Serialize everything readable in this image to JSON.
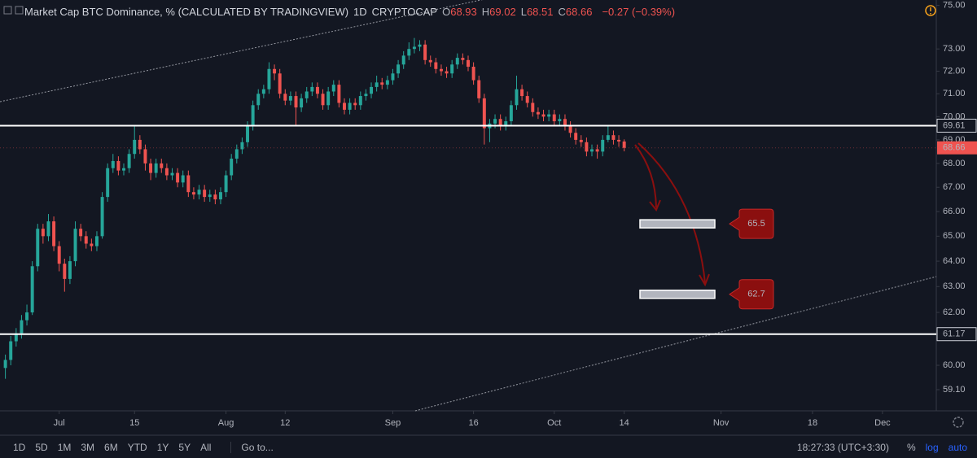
{
  "header": {
    "symbol": "Market Cap BTC Dominance, % (CALCULATED BY TRADINGVIEW)",
    "interval": "1D",
    "exchange": "CRYPTOCAP",
    "ohlc": [
      {
        "label": "O",
        "value": "68.93"
      },
      {
        "label": "H",
        "value": "69.02"
      },
      {
        "label": "L",
        "value": "68.51"
      },
      {
        "label": "C",
        "value": "68.66"
      }
    ],
    "change": "−0.27 (−0.39%)"
  },
  "toolbar": {
    "ranges": [
      "1D",
      "5D",
      "1M",
      "3M",
      "6M",
      "YTD",
      "1Y",
      "5Y",
      "All"
    ],
    "goto": "Go to...",
    "clock": "18:27:33 (UTC+3:30)",
    "modes": [
      "%",
      "log",
      "auto"
    ]
  },
  "chart_data": {
    "type": "candlestick",
    "log_scale": true,
    "grid": false,
    "up_color": "#26a69a",
    "down_color": "#ef5350",
    "ylim": [
      58.33,
      75.25
    ],
    "yticks": [
      {
        "value": 75,
        "label": "75.00"
      },
      {
        "value": 73,
        "label": "73.00"
      },
      {
        "value": 72,
        "label": "72.00"
      },
      {
        "value": 71,
        "label": "71.00"
      },
      {
        "value": 70,
        "label": "70.00"
      },
      {
        "value": 69,
        "label": "69.00"
      },
      {
        "value": 68,
        "label": "68.00"
      },
      {
        "value": 67,
        "label": "67.00"
      },
      {
        "value": 66,
        "label": "66.00"
      },
      {
        "value": 65,
        "label": "65.00"
      },
      {
        "value": 64,
        "label": "64.00"
      },
      {
        "value": 63,
        "label": "63.00"
      },
      {
        "value": 62,
        "label": "62.00"
      },
      {
        "value": 60,
        "label": "60.00"
      },
      {
        "value": 59.1,
        "label": "59.10"
      }
    ],
    "xlim": [
      "Jun 20",
      "Dec 11"
    ],
    "xticks": [
      {
        "value": "Jul 1",
        "label": "Jul"
      },
      {
        "value": "Jul 15",
        "label": "15"
      },
      {
        "value": "Aug 1",
        "label": "Aug"
      },
      {
        "value": "Aug 12",
        "label": "12"
      },
      {
        "value": "Sep 1",
        "label": "Sep"
      },
      {
        "value": "Sep 16",
        "label": "16"
      },
      {
        "value": "Oct 1",
        "label": "Oct"
      },
      {
        "value": "Oct 14",
        "label": "14"
      },
      {
        "value": "Nov 1",
        "label": "Nov"
      },
      {
        "value": "Nov 18",
        "label": "18"
      },
      {
        "value": "Dec 1",
        "label": "Dec"
      }
    ],
    "x": [
      "Jun 21",
      "Jun 22",
      "Jun 23",
      "Jun 24",
      "Jun 25",
      "Jun 26",
      "Jun 27",
      "Jun 28",
      "Jun 29",
      "Jun 30",
      "Jul 1",
      "Jul 2",
      "Jul 3",
      "Jul 4",
      "Jul 5",
      "Jul 6",
      "Jul 7",
      "Jul 8",
      "Jul 9",
      "Jul 10",
      "Jul 11",
      "Jul 12",
      "Jul 13",
      "Jul 14",
      "Jul 15",
      "Jul 16",
      "Jul 17",
      "Jul 18",
      "Jul 19",
      "Jul 20",
      "Jul 21",
      "Jul 22",
      "Jul 23",
      "Jul 24",
      "Jul 25",
      "Jul 26",
      "Jul 27",
      "Jul 28",
      "Jul 29",
      "Jul 30",
      "Jul 31",
      "Aug 1",
      "Aug 2",
      "Aug 3",
      "Aug 4",
      "Aug 5",
      "Aug 6",
      "Aug 7",
      "Aug 8",
      "Aug 9",
      "Aug 10",
      "Aug 11",
      "Aug 12",
      "Aug 13",
      "Aug 14",
      "Aug 15",
      "Aug 16",
      "Aug 17",
      "Aug 18",
      "Aug 19",
      "Aug 20",
      "Aug 21",
      "Aug 22",
      "Aug 23",
      "Aug 24",
      "Aug 25",
      "Aug 26",
      "Aug 27",
      "Aug 28",
      "Aug 29",
      "Aug 30",
      "Aug 31",
      "Sep 1",
      "Sep 2",
      "Sep 3",
      "Sep 4",
      "Sep 5",
      "Sep 6",
      "Sep 7",
      "Sep 8",
      "Sep 9",
      "Sep 10",
      "Sep 11",
      "Sep 12",
      "Sep 13",
      "Sep 14",
      "Sep 15",
      "Sep 16",
      "Sep 17",
      "Sep 18",
      "Sep 19",
      "Sep 20",
      "Sep 21",
      "Sep 22",
      "Sep 23",
      "Sep 24",
      "Sep 25",
      "Sep 26",
      "Sep 27",
      "Sep 28",
      "Sep 29",
      "Sep 30",
      "Oct 1",
      "Oct 2",
      "Oct 3",
      "Oct 4",
      "Oct 5",
      "Oct 6",
      "Oct 7",
      "Oct 8",
      "Oct 9",
      "Oct 10",
      "Oct 11",
      "Oct 12",
      "Oct 13",
      "Oct 14"
    ],
    "open": [
      59.9,
      60.2,
      60.9,
      61.2,
      61.7,
      62.0,
      63.8,
      65.3,
      65.0,
      65.6,
      64.6,
      63.9,
      63.3,
      64.0,
      65.3,
      65.0,
      64.7,
      64.6,
      65.0,
      66.6,
      67.8,
      68.1,
      67.7,
      67.8,
      68.4,
      69.0,
      68.6,
      68.0,
      67.6,
      68.0,
      67.8,
      67.5,
      67.6,
      67.2,
      67.5,
      66.8,
      66.7,
      66.9,
      66.6,
      66.7,
      66.5,
      66.8,
      67.5,
      68.2,
      68.6,
      68.9,
      69.6,
      70.5,
      71.0,
      71.2,
      72.1,
      71.9,
      71.0,
      70.7,
      70.9,
      70.4,
      70.8,
      71.1,
      71.3,
      71.0,
      70.5,
      71.1,
      71.4,
      70.6,
      70.3,
      70.6,
      70.5,
      70.9,
      71.0,
      71.3,
      71.5,
      71.4,
      71.6,
      71.9,
      72.3,
      72.7,
      73.0,
      73.1,
      73.2,
      72.5,
      72.4,
      72.1,
      72.0,
      71.9,
      72.3,
      72.6,
      72.5,
      72.2,
      71.6,
      70.8,
      69.5,
      69.7,
      69.9,
      69.6,
      69.8,
      70.5,
      71.2,
      70.9,
      70.6,
      70.2,
      70.1,
      70.0,
      70.1,
      69.8,
      69.9,
      69.6,
      69.3,
      69.0,
      68.9,
      68.5,
      68.6,
      68.5,
      69.0,
      69.2,
      69.0,
      68.93
    ],
    "high": [
      60.4,
      61.1,
      61.4,
      61.9,
      62.3,
      64.0,
      65.5,
      65.5,
      65.9,
      65.8,
      64.8,
      64.1,
      64.2,
      65.6,
      65.5,
      65.2,
      64.9,
      65.2,
      66.8,
      68.0,
      68.4,
      68.3,
      68.0,
      68.6,
      69.6,
      69.2,
      68.8,
      68.2,
      68.2,
      68.2,
      68.0,
      67.8,
      67.8,
      67.7,
      67.7,
      67.0,
      67.1,
      67.1,
      66.9,
      66.9,
      67.0,
      67.7,
      68.4,
      68.8,
      69.1,
      69.8,
      70.7,
      71.2,
      71.4,
      72.4,
      72.3,
      72.1,
      71.2,
      71.1,
      71.1,
      71.0,
      71.3,
      71.5,
      71.5,
      71.2,
      71.3,
      71.6,
      71.6,
      70.8,
      70.8,
      70.8,
      71.1,
      71.2,
      71.5,
      71.8,
      71.7,
      71.8,
      72.1,
      72.5,
      72.9,
      73.3,
      73.5,
      73.4,
      73.4,
      72.7,
      72.6,
      72.3,
      72.2,
      72.5,
      72.8,
      72.8,
      72.7,
      72.4,
      71.8,
      71.0,
      69.9,
      70.1,
      70.1,
      70.0,
      70.7,
      71.8,
      71.4,
      71.1,
      70.8,
      70.4,
      70.3,
      70.3,
      70.3,
      70.1,
      70.1,
      69.8,
      69.5,
      69.2,
      69.1,
      68.8,
      68.8,
      69.2,
      69.6,
      69.4,
      69.2,
      69.02
    ],
    "low": [
      59.5,
      60.0,
      60.7,
      61.0,
      61.5,
      61.9,
      63.6,
      64.7,
      64.8,
      64.4,
      63.6,
      62.8,
      63.1,
      63.8,
      64.8,
      64.5,
      64.4,
      64.4,
      64.9,
      66.4,
      67.6,
      67.5,
      67.5,
      67.6,
      68.2,
      68.4,
      67.7,
      67.3,
      67.4,
      67.6,
      67.3,
      67.3,
      67.0,
      67.0,
      66.6,
      66.5,
      66.5,
      66.4,
      66.4,
      66.3,
      66.3,
      66.6,
      67.3,
      68.0,
      68.4,
      68.7,
      69.4,
      70.3,
      70.8,
      71.0,
      71.6,
      70.8,
      70.5,
      70.5,
      69.6,
      70.2,
      70.6,
      70.9,
      70.8,
      70.3,
      70.3,
      70.9,
      70.4,
      70.1,
      70.1,
      70.3,
      70.3,
      70.7,
      70.8,
      71.1,
      71.2,
      71.2,
      71.4,
      71.7,
      72.1,
      72.5,
      72.8,
      72.9,
      72.3,
      72.2,
      71.9,
      71.8,
      71.7,
      71.7,
      72.1,
      72.3,
      72.0,
      71.4,
      70.6,
      68.8,
      68.9,
      69.5,
      69.4,
      69.4,
      69.6,
      70.3,
      70.7,
      70.4,
      70.0,
      69.9,
      69.8,
      69.8,
      69.6,
      69.6,
      69.4,
      69.1,
      68.8,
      68.7,
      68.3,
      68.3,
      68.2,
      68.3,
      68.9,
      68.8,
      68.7,
      68.51
    ],
    "close": [
      60.2,
      60.9,
      61.2,
      61.7,
      62.0,
      63.8,
      65.3,
      65.0,
      65.6,
      64.6,
      63.9,
      63.3,
      64.0,
      65.3,
      65.0,
      64.7,
      64.6,
      65.0,
      66.6,
      67.8,
      68.1,
      67.7,
      67.8,
      68.4,
      69.0,
      68.6,
      68.0,
      67.6,
      68.0,
      67.8,
      67.5,
      67.6,
      67.2,
      67.5,
      66.8,
      66.7,
      66.9,
      66.6,
      66.7,
      66.5,
      66.8,
      67.5,
      68.2,
      68.6,
      68.9,
      69.6,
      70.5,
      71.0,
      71.2,
      72.1,
      71.9,
      71.0,
      70.7,
      70.9,
      70.4,
      70.8,
      71.1,
      71.3,
      71.0,
      70.5,
      71.1,
      71.4,
      70.6,
      70.3,
      70.6,
      70.5,
      70.9,
      71.0,
      71.3,
      71.5,
      71.4,
      71.6,
      71.9,
      72.3,
      72.7,
      73.0,
      73.1,
      73.2,
      72.5,
      72.4,
      72.1,
      72.0,
      71.9,
      72.3,
      72.6,
      72.5,
      72.2,
      71.6,
      70.8,
      69.5,
      69.7,
      69.9,
      69.6,
      69.8,
      70.5,
      71.2,
      70.9,
      70.6,
      70.2,
      70.1,
      70.0,
      70.1,
      69.8,
      69.9,
      69.6,
      69.3,
      69.0,
      68.9,
      68.5,
      68.6,
      68.5,
      69.0,
      69.2,
      69.0,
      68.93,
      68.66
    ],
    "hlines": [
      69.61,
      61.17
    ],
    "last_price": 68.66,
    "targets": [
      65.5,
      62.7
    ]
  }
}
